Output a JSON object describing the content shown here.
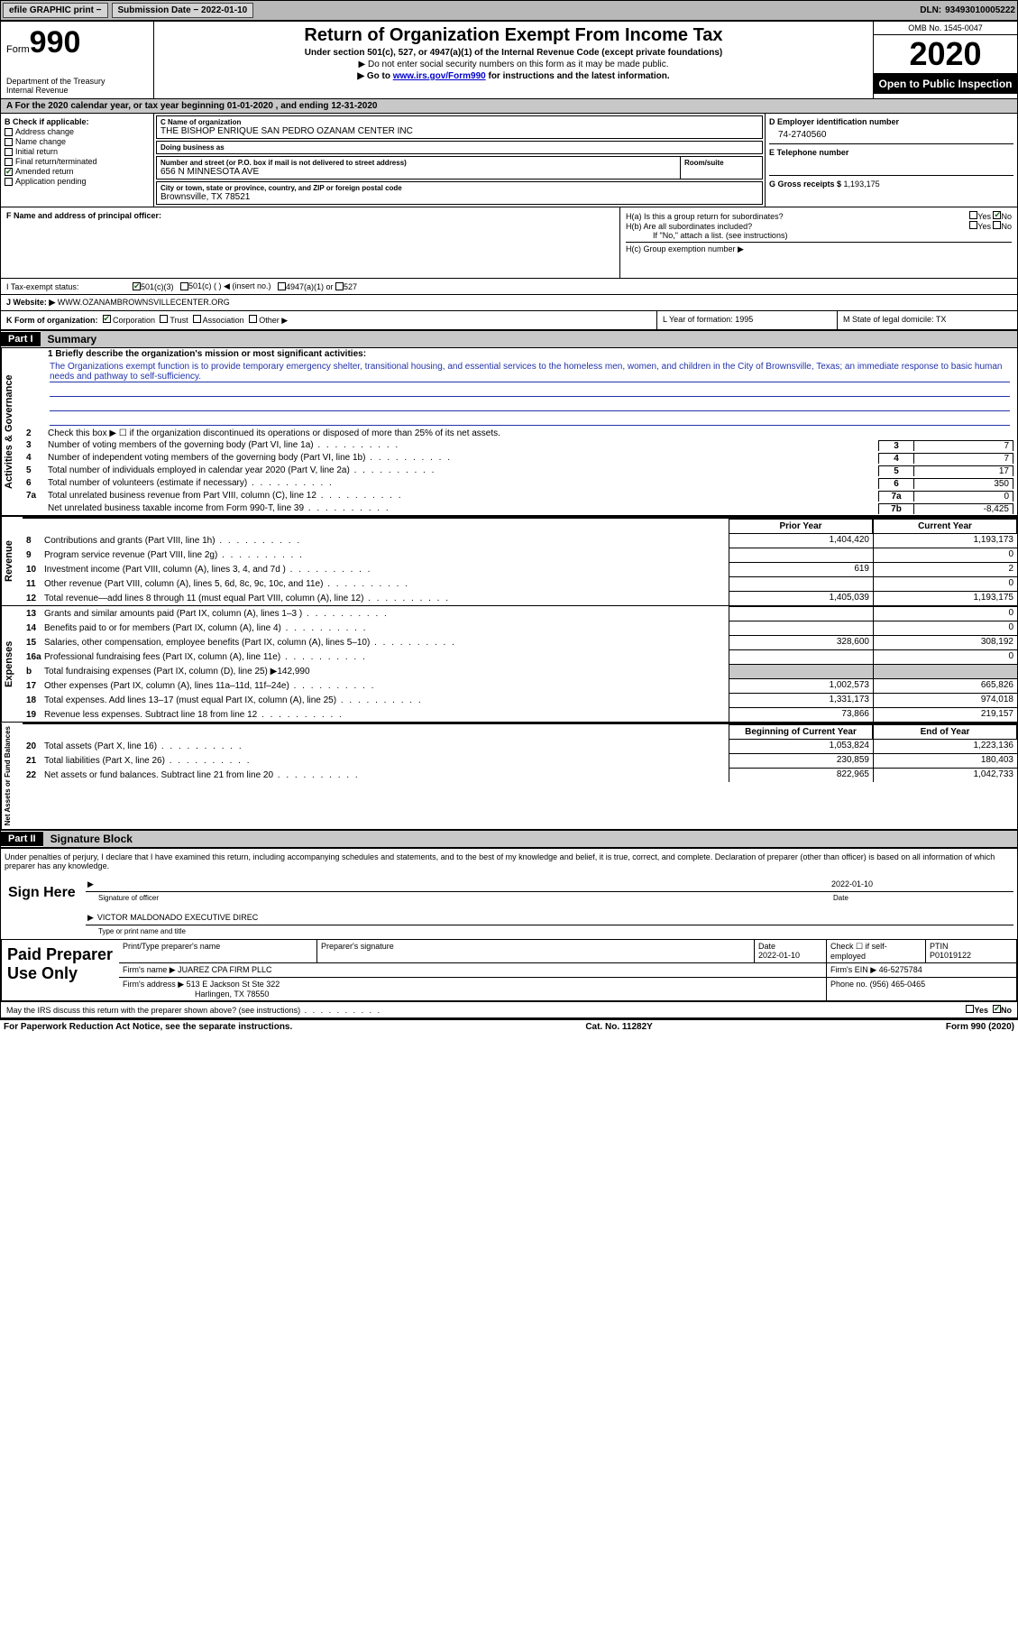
{
  "topbar": {
    "efile": "efile GRAPHIC print −",
    "submission_label": "Submission Date − ",
    "submission_date": "2022-01-10",
    "dln_label": "DLN: ",
    "dln": "93493010005222"
  },
  "header": {
    "form_word": "Form",
    "form_num": "990",
    "dept1": "Department of the Treasury",
    "dept2": "Internal Revenue",
    "title": "Return of Organization Exempt From Income Tax",
    "subtitle": "Under section 501(c), 527, or 4947(a)(1) of the Internal Revenue Code (except private foundations)",
    "note1": "▶ Do not enter social security numbers on this form as it may be made public.",
    "note2_pre": "▶ Go to ",
    "note2_link": "www.irs.gov/Form990",
    "note2_post": " for instructions and the latest information.",
    "omb": "OMB No. 1545-0047",
    "year": "2020",
    "open": "Open to Public Inspection"
  },
  "row_a": "A For the 2020 calendar year, or tax year beginning 01-01-2020    , and ending 12-31-2020",
  "section_b": {
    "label": "B Check if applicable:",
    "items": [
      {
        "label": "Address change",
        "checked": false
      },
      {
        "label": "Name change",
        "checked": false
      },
      {
        "label": "Initial return",
        "checked": false
      },
      {
        "label": "Final return/terminated",
        "checked": false
      },
      {
        "label": "Amended return",
        "checked": true
      },
      {
        "label": "Application pending",
        "checked": false
      }
    ]
  },
  "section_c": {
    "name_label": "C Name of organization",
    "name": "THE BISHOP ENRIQUE SAN PEDRO OZANAM CENTER INC",
    "dba_label": "Doing business as",
    "dba": "",
    "addr_label": "Number and street (or P.O. box if mail is not delivered to street address)",
    "room_label": "Room/suite",
    "addr": "656 N MINNESOTA AVE",
    "city_label": "City or town, state or province, country, and ZIP or foreign postal code",
    "city": "Brownsville, TX  78521"
  },
  "section_d": {
    "label": "D Employer identification number",
    "value": "74-2740560"
  },
  "section_e": {
    "label": "E Telephone number",
    "value": ""
  },
  "section_g": {
    "label": "G Gross receipts $ ",
    "value": "1,193,175"
  },
  "section_f": {
    "label": "F  Name and address of principal officer:",
    "value": ""
  },
  "section_h": {
    "ha": "H(a)  Is this a group return for subordinates?",
    "ha_yes": "Yes",
    "ha_no": "No",
    "hb": "H(b)  Are all subordinates included?",
    "hb_yes": "Yes",
    "hb_no": "No",
    "hb_note": "If \"No,\" attach a list. (see instructions)",
    "hc": "H(c)  Group exemption number ▶"
  },
  "tax_status": {
    "label": "I    Tax-exempt status:",
    "c501c3": "501(c)(3)",
    "c501c": "501(c) (  ) ◀ (insert no.)",
    "c4947": "4947(a)(1) or",
    "c527": "527"
  },
  "website": {
    "label": "J   Website: ▶",
    "value": "WWW.OZANAMBROWNSVILLECENTER.ORG"
  },
  "k_form": {
    "label": "K Form of organization:",
    "corp": "Corporation",
    "trust": "Trust",
    "assoc": "Association",
    "other": "Other ▶"
  },
  "lm": {
    "l": "L Year of formation: 1995",
    "m": "M State of legal domicile: TX"
  },
  "part1": {
    "tag": "Part I",
    "title": "Summary"
  },
  "mission": {
    "q1": "1   Briefly describe the organization's mission or most significant activities:",
    "text": "The Organizations exempt function is to provide temporary emergency shelter, transitional housing, and essential services to the homeless men, women, and children in the City of Brownsville, Texas; an immediate response to basic human needs and pathway to self-sufficiency."
  },
  "gov_lines": {
    "l2": "Check this box ▶ ☐  if the organization discontinued its operations or disposed of more than 25% of its net assets.",
    "l3": "Number of voting members of the governing body (Part VI, line 1a)",
    "l4": "Number of independent voting members of the governing body (Part VI, line 1b)",
    "l5": "Total number of individuals employed in calendar year 2020 (Part V, line 2a)",
    "l6": "Total number of volunteers (estimate if necessary)",
    "l7a": "Total unrelated business revenue from Part VIII, column (C), line 12",
    "l7b": "Net unrelated business taxable income from Form 990-T, line 39"
  },
  "gov_vals": {
    "3": "7",
    "4": "7",
    "5": "17",
    "6": "350",
    "7a": "0",
    "7b": "-8,425"
  },
  "rev_header": {
    "prior": "Prior Year",
    "current": "Current Year"
  },
  "rev_lines": [
    {
      "n": "8",
      "t": "Contributions and grants (Part VIII, line 1h)",
      "p": "1,404,420",
      "c": "1,193,173"
    },
    {
      "n": "9",
      "t": "Program service revenue (Part VIII, line 2g)",
      "p": "",
      "c": "0"
    },
    {
      "n": "10",
      "t": "Investment income (Part VIII, column (A), lines 3, 4, and 7d )",
      "p": "619",
      "c": "2"
    },
    {
      "n": "11",
      "t": "Other revenue (Part VIII, column (A), lines 5, 6d, 8c, 9c, 10c, and 11e)",
      "p": "",
      "c": "0"
    },
    {
      "n": "12",
      "t": "Total revenue—add lines 8 through 11 (must equal Part VIII, column (A), line 12)",
      "p": "1,405,039",
      "c": "1,193,175"
    }
  ],
  "exp_lines": [
    {
      "n": "13",
      "t": "Grants and similar amounts paid (Part IX, column (A), lines 1–3 )",
      "p": "",
      "c": "0"
    },
    {
      "n": "14",
      "t": "Benefits paid to or for members (Part IX, column (A), line 4)",
      "p": "",
      "c": "0"
    },
    {
      "n": "15",
      "t": "Salaries, other compensation, employee benefits (Part IX, column (A), lines 5–10)",
      "p": "328,600",
      "c": "308,192"
    },
    {
      "n": "16a",
      "t": "Professional fundraising fees (Part IX, column (A), line 11e)",
      "p": "",
      "c": "0"
    },
    {
      "n": "b",
      "t": "Total fundraising expenses (Part IX, column (D), line 25) ▶142,990",
      "p": "shaded",
      "c": "shaded"
    },
    {
      "n": "17",
      "t": "Other expenses (Part IX, column (A), lines 11a–11d, 11f–24e)",
      "p": "1,002,573",
      "c": "665,826"
    },
    {
      "n": "18",
      "t": "Total expenses. Add lines 13–17 (must equal Part IX, column (A), line 25)",
      "p": "1,331,173",
      "c": "974,018"
    },
    {
      "n": "19",
      "t": "Revenue less expenses. Subtract line 18 from line 12",
      "p": "73,866",
      "c": "219,157"
    }
  ],
  "na_header": {
    "prior": "Beginning of Current Year",
    "current": "End of Year"
  },
  "na_lines": [
    {
      "n": "20",
      "t": "Total assets (Part X, line 16)",
      "p": "1,053,824",
      "c": "1,223,136"
    },
    {
      "n": "21",
      "t": "Total liabilities (Part X, line 26)",
      "p": "230,859",
      "c": "180,403"
    },
    {
      "n": "22",
      "t": "Net assets or fund balances. Subtract line 21 from line 20",
      "p": "822,965",
      "c": "1,042,733"
    }
  ],
  "part2": {
    "tag": "Part II",
    "title": "Signature Block"
  },
  "sig": {
    "decl": "Under penalties of perjury, I declare that I have examined this return, including accompanying schedules and statements, and to the best of my knowledge and belief, it is true, correct, and complete. Declaration of preparer (other than officer) is based on all information of which preparer has any knowledge.",
    "sign_here": "Sign Here",
    "sig_officer": "Signature of officer",
    "date_label": "Date",
    "date": "2022-01-10",
    "name": "VICTOR MALDONADO  EXECUTIVE DIREC",
    "name_label": "Type or print name and title"
  },
  "preparer": {
    "left": "Paid Preparer Use Only",
    "h_print": "Print/Type preparer's name",
    "h_sig": "Preparer's signature",
    "h_date": "Date",
    "date": "2022-01-10",
    "h_check": "Check ☐ if self-employed",
    "h_ptin": "PTIN",
    "ptin": "P01019122",
    "firm_name_l": "Firm's name    ▶",
    "firm_name": "JUAREZ CPA FIRM PLLC",
    "firm_ein_l": "Firm's EIN ▶",
    "firm_ein": "46-5275784",
    "firm_addr_l": "Firm's address ▶",
    "firm_addr1": "513 E Jackson St Ste 322",
    "firm_addr2": "Harlingen, TX  78550",
    "phone_l": "Phone no.",
    "phone": "(956) 465-0465"
  },
  "discuss": {
    "text": "May the IRS discuss this return with the preparer shown above? (see instructions)",
    "yes": "Yes",
    "no": "No"
  },
  "footer": {
    "left": "For Paperwork Reduction Act Notice, see the separate instructions.",
    "mid": "Cat. No. 11282Y",
    "right": "Form 990 (2020)"
  },
  "vlabels": {
    "gov": "Activities & Governance",
    "rev": "Revenue",
    "exp": "Expenses",
    "na": "Net Assets or Fund Balances"
  },
  "colors": {
    "topbar_bg": "#b8b8b8",
    "button_bg": "#d4d4d4",
    "shaded_bg": "#c8c8c8",
    "link": "#0000cc",
    "mission_line": "#2233aa"
  }
}
